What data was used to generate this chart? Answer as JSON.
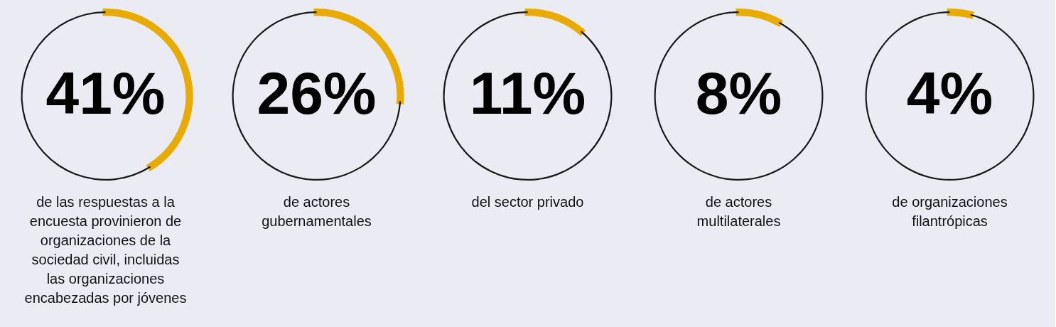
{
  "chart_data": [
    {
      "type": "donut",
      "categories": [
        null,
        null
      ],
      "values": [
        41,
        59
      ],
      "colors": [
        "#eaab00",
        "#1a1a1a"
      ],
      "value_labels": [
        "41%",
        null
      ],
      "annotations": [
        "de las respuestas a la encuesta provinieron de organizaciones de la sociedad civil, incluidas las organizaciones encabezadas por jóvenes"
      ]
    },
    {
      "type": "donut",
      "categories": [
        null,
        null
      ],
      "values": [
        26,
        74
      ],
      "colors": [
        "#eaab00",
        "#1a1a1a"
      ],
      "value_labels": [
        "26%",
        null
      ],
      "annotations": [
        "de actores gubernamentales"
      ]
    },
    {
      "type": "donut",
      "categories": [
        null,
        null
      ],
      "values": [
        11,
        89
      ],
      "colors": [
        "#eaab00",
        "#1a1a1a"
      ],
      "value_labels": [
        "11%",
        null
      ],
      "annotations": [
        "del sector privado"
      ]
    },
    {
      "type": "donut",
      "categories": [
        null,
        null
      ],
      "values": [
        8,
        92
      ],
      "colors": [
        "#eaab00",
        "#1a1a1a"
      ],
      "value_labels": [
        "8%",
        null
      ],
      "annotations": [
        "de actores multilaterales"
      ]
    },
    {
      "type": "donut",
      "categories": [
        null,
        null
      ],
      "values": [
        4,
        96
      ],
      "colors": [
        "#eaab00",
        "#1a1a1a"
      ],
      "value_labels": [
        "4%",
        null
      ],
      "annotations": [
        "de organizaciones filantrópicas"
      ]
    }
  ]
}
